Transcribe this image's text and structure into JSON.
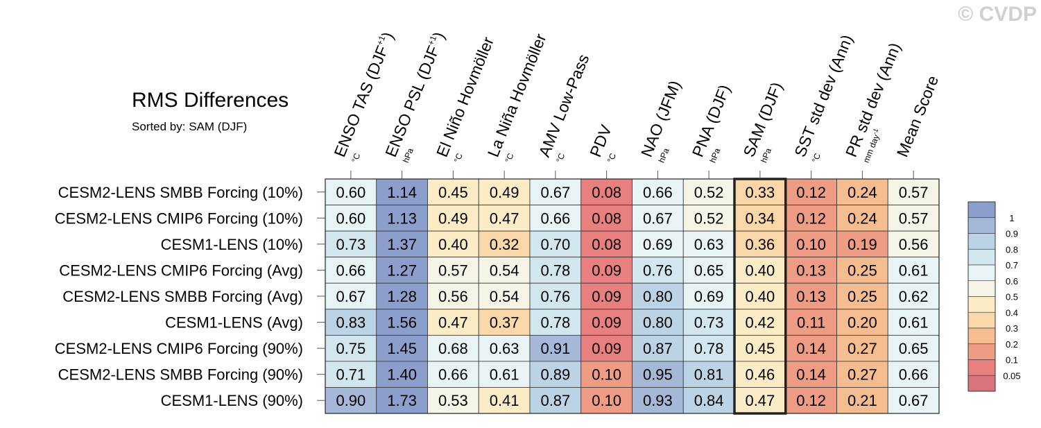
{
  "watermark": "© CVDP",
  "chart_data": {
    "type": "heatmap",
    "title": "RMS Differences",
    "subtitle": "Sorted by: SAM (DJF)",
    "columns": [
      {
        "label": "ENSO TAS (DJF",
        "sup": "+1",
        "close": ")",
        "unit": "°C"
      },
      {
        "label": "ENSO PSL (DJF",
        "sup": "+1",
        "close": ")",
        "unit": "hPa"
      },
      {
        "label": "El Niño Hovmöller",
        "unit": "°C"
      },
      {
        "label": "La Niña Hovmöller",
        "unit": "°C"
      },
      {
        "label": "AMV Low-Pass",
        "unit": "°C"
      },
      {
        "label": "PDV",
        "unit": "°C"
      },
      {
        "label": "NAO (JFM)",
        "unit": "hPa"
      },
      {
        "label": "PNA (DJF)",
        "unit": "hPa"
      },
      {
        "label": "SAM (DJF)",
        "unit": "hPa"
      },
      {
        "label": "SST std dev (Ann)",
        "unit": "°C"
      },
      {
        "label": "PR std dev (Ann)",
        "unit": "mm day",
        "unit_sup": "-1"
      },
      {
        "label": "Mean Score",
        "unit": ""
      }
    ],
    "rows": [
      "CESM2-LENS SMBB Forcing (10%)",
      "CESM2-LENS CMIP6 Forcing (10%)",
      "CESM1-LENS (10%)",
      "CESM2-LENS CMIP6 Forcing (Avg)",
      "CESM2-LENS SMBB Forcing (Avg)",
      "CESM1-LENS (Avg)",
      "CESM2-LENS CMIP6 Forcing (90%)",
      "CESM2-LENS SMBB Forcing (90%)",
      "CESM1-LENS (90%)"
    ],
    "values": [
      [
        "0.60",
        "1.14",
        "0.45",
        "0.49",
        "0.67",
        "0.08",
        "0.66",
        "0.52",
        "0.33",
        "0.12",
        "0.24",
        "0.57"
      ],
      [
        "0.60",
        "1.13",
        "0.49",
        "0.47",
        "0.66",
        "0.08",
        "0.67",
        "0.52",
        "0.34",
        "0.12",
        "0.24",
        "0.57"
      ],
      [
        "0.73",
        "1.37",
        "0.40",
        "0.32",
        "0.70",
        "0.08",
        "0.69",
        "0.63",
        "0.36",
        "0.10",
        "0.19",
        "0.56"
      ],
      [
        "0.66",
        "1.27",
        "0.57",
        "0.54",
        "0.78",
        "0.09",
        "0.76",
        "0.65",
        "0.40",
        "0.13",
        "0.25",
        "0.61"
      ],
      [
        "0.67",
        "1.28",
        "0.56",
        "0.54",
        "0.76",
        "0.09",
        "0.80",
        "0.69",
        "0.40",
        "0.13",
        "0.25",
        "0.62"
      ],
      [
        "0.83",
        "1.56",
        "0.47",
        "0.37",
        "0.78",
        "0.09",
        "0.80",
        "0.73",
        "0.42",
        "0.11",
        "0.20",
        "0.61"
      ],
      [
        "0.75",
        "1.45",
        "0.68",
        "0.63",
        "0.91",
        "0.09",
        "0.87",
        "0.78",
        "0.45",
        "0.14",
        "0.27",
        "0.65"
      ],
      [
        "0.71",
        "1.40",
        "0.66",
        "0.61",
        "0.89",
        "0.10",
        "0.95",
        "0.81",
        "0.46",
        "0.14",
        "0.27",
        "0.66"
      ],
      [
        "0.90",
        "1.73",
        "0.53",
        "0.41",
        "0.87",
        "0.10",
        "0.93",
        "0.84",
        "0.47",
        "0.12",
        "0.21",
        "0.67"
      ]
    ],
    "highlighted_column": "SAM (DJF)",
    "colorbar": {
      "labels": [
        "1",
        "0.9",
        "0.8",
        "0.7",
        "0.6",
        "0.5",
        "0.4",
        "0.3",
        "0.2",
        "0.1",
        "0.05"
      ],
      "colors": [
        "#8c9ecb",
        "#a5b8d8",
        "#bcd3e5",
        "#d2e6f0",
        "#e8f3f6",
        "#f5f4e7",
        "#fcecc5",
        "#f9d7a8",
        "#f4bc8f",
        "#ee9c84",
        "#e88080",
        "#d8747e"
      ]
    }
  }
}
